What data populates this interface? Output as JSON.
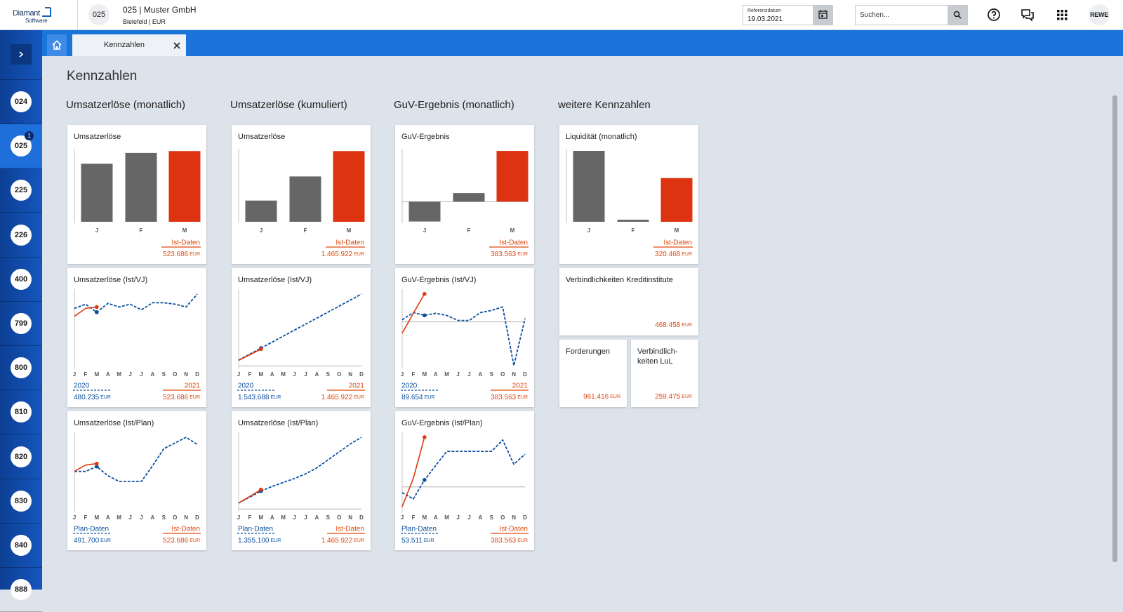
{
  "header": {
    "logo": "Diamant",
    "logo_sub": "Software",
    "client_number": "025",
    "client_name": "025 | Muster GmbH",
    "client_location": "Bielefeld | EUR",
    "date_label": "Referenzdatum",
    "date": "19.03.2021",
    "search_placeholder": "Suchen...",
    "user": "REWE"
  },
  "sidebar": {
    "clients": [
      "024",
      "025",
      "225",
      "226",
      "400",
      "799",
      "800",
      "810",
      "820",
      "830",
      "840",
      "888"
    ],
    "active": 1,
    "badge": "1"
  },
  "tabs": [
    {
      "label": "Kennzahlen"
    }
  ],
  "page": {
    "title": "Kennzahlen",
    "currency": "EUR"
  },
  "months": [
    "J",
    "F",
    "M",
    "A",
    "M",
    "J",
    "J",
    "A",
    "S",
    "O",
    "N",
    "D"
  ],
  "columns": [
    {
      "heading": "Umsatzerlöse (monatlich)",
      "cards": [
        {
          "type": "bar",
          "title": "Umsatzerlöse",
          "values": [
            430000,
            510000,
            523686
          ],
          "colors": [
            "#666666",
            "#666666",
            "#dd3311"
          ],
          "ylim": [
            0,
            525000
          ],
          "legend": "Ist-Daten",
          "total": "523.686"
        },
        {
          "type": "line",
          "title": "Umsatzerlöse (Ist/VJ)",
          "ylim": [
            20000,
            662000
          ],
          "series": [
            {
              "name": "2020",
              "color": "#0b4f9e",
              "dash": true,
              "values": [
                512000,
                548000,
                480235,
                554000,
                524000,
                548000,
                500000,
                560000,
                560000,
                548000,
                524000,
                632000
              ],
              "total": "480.235"
            },
            {
              "name": "2021",
              "color": "#e0380f",
              "dash": false,
              "values": [
                446000,
                512000,
                523686,
                null,
                null,
                null,
                null,
                null,
                null,
                null,
                null,
                null
              ],
              "total": "523.686"
            }
          ]
        },
        {
          "type": "line",
          "title": "Umsatzerlöse (Ist/Plan)",
          "ylim": [
            0,
            860000
          ],
          "series": [
            {
              "name": "Plan-Daten",
              "color": "#0b4f9e",
              "dash": true,
              "values": [
                436000,
                436000,
                491700,
                388000,
                324000,
                324000,
                324000,
                500000,
                692000,
                756000,
                820000,
                740000
              ],
              "total": "491.700"
            },
            {
              "name": "Ist-Daten",
              "color": "#e0380f",
              "dash": false,
              "values": [
                436000,
                508000,
                523686,
                null,
                null,
                null,
                null,
                null,
                null,
                null,
                null,
                null
              ],
              "total": "523.686"
            }
          ]
        }
      ]
    },
    {
      "heading": "Umsatzerlöse (kumuliert)",
      "cards": [
        {
          "type": "bar",
          "title": "Umsatzerlöse",
          "values": [
            440000,
            940000,
            1465922
          ],
          "colors": [
            "#666666",
            "#666666",
            "#dd3311"
          ],
          "ylim": [
            0,
            1470000
          ],
          "legend": "Ist-Daten",
          "total": "1.465.922"
        },
        {
          "type": "line",
          "title": "Umsatzerlöse (Ist/VJ)",
          "ylim": [
            -100000,
            6550000
          ],
          "series": [
            {
              "name": "2020",
              "color": "#0b4f9e",
              "dash": true,
              "values": [
                500000,
                1022000,
                1543688,
                2066000,
                2588000,
                3110000,
                3632000,
                4154000,
                4676000,
                5198000,
                5720000,
                6242000
              ],
              "total": "1.543.688"
            },
            {
              "name": "2021",
              "color": "#e0380f",
              "dash": false,
              "values": [
                480000,
                960000,
                1465922,
                null,
                null,
                null,
                null,
                null,
                null,
                null,
                null,
                null
              ],
              "total": "1.465.922"
            }
          ]
        },
        {
          "type": "line",
          "title": "Umsatzerlöse (Ist/Plan)",
          "ylim": [
            -90000,
            5670000
          ],
          "series": [
            {
              "name": "Plan-Daten",
              "color": "#0b4f9e",
              "dash": true,
              "values": [
                450000,
                900000,
                1355100,
                1700000,
                2000000,
                2300000,
                2650000,
                3100000,
                3700000,
                4300000,
                4900000,
                5400000
              ],
              "total": "1.355.100"
            },
            {
              "name": "Ist-Daten",
              "color": "#e0380f",
              "dash": false,
              "values": [
                460000,
                950000,
                1465922,
                null,
                null,
                null,
                null,
                null,
                null,
                null,
                null,
                null
              ],
              "total": "1.465.922"
            }
          ]
        }
      ]
    },
    {
      "heading": "GuV-Ergebnis (monatlich)",
      "cards": [
        {
          "type": "bar",
          "title": "GuV-Ergebnis",
          "values": [
            -150000,
            65000,
            383563
          ],
          "colors": [
            "#666666",
            "#666666",
            "#dd3311"
          ],
          "ylim": [
            -152000,
            384000
          ],
          "legend": "Ist-Daten",
          "total": "383.563"
        },
        {
          "type": "line",
          "title": "GuV-Ergebnis (Ist/VJ)",
          "ylim": [
            -620000,
            430000
          ],
          "series": [
            {
              "name": "2020",
              "color": "#0b4f9e",
              "dash": true,
              "values": [
                29000,
                128000,
                89654,
                118000,
                88000,
                20000,
                20000,
                128000,
                157000,
                206000,
                -600000,
                49000
              ],
              "total": "89.654"
            },
            {
              "name": "2021",
              "color": "#e0380f",
              "dash": false,
              "values": [
                -157000,
                118000,
                383563,
                null,
                null,
                null,
                null,
                null,
                null,
                null,
                null,
                null
              ],
              "total": "383.563"
            }
          ]
        },
        {
          "type": "line",
          "title": "GuV-Ergebnis (Ist/Plan)",
          "ylim": [
            -180000,
            410000
          ],
          "series": [
            {
              "name": "Plan-Daten",
              "color": "#0b4f9e",
              "dash": true,
              "values": [
                -44000,
                -93000,
                53511,
                164000,
                274000,
                274000,
                274000,
                274000,
                274000,
                362000,
                175000,
                252000
              ],
              "total": "53.511"
            },
            {
              "name": "Ist-Daten",
              "color": "#e0380f",
              "dash": false,
              "values": [
                -153000,
                66000,
                383563,
                null,
                null,
                null,
                null,
                null,
                null,
                null,
                null,
                null
              ],
              "total": "383.563"
            }
          ]
        }
      ]
    },
    {
      "heading": "weitere Kennzahlen",
      "cards": [
        {
          "type": "bar",
          "title": "Liquidität (monatlich)",
          "values": [
            520000,
            15000,
            320468
          ],
          "colors": [
            "#666666",
            "#666666",
            "#dd3311"
          ],
          "ylim": [
            0,
            520000
          ],
          "legend": "Ist-Daten",
          "total": "320.468"
        },
        {
          "type": "kpi",
          "title": "Verbindlichkeiten Kreditinstitute",
          "total": "468.458"
        },
        {
          "type": "kpi",
          "title": "Forderungen",
          "total": "961.416"
        },
        {
          "type": "kpi",
          "title": "Verbindlich-keiten LuL",
          "total": "259.475"
        }
      ]
    }
  ]
}
